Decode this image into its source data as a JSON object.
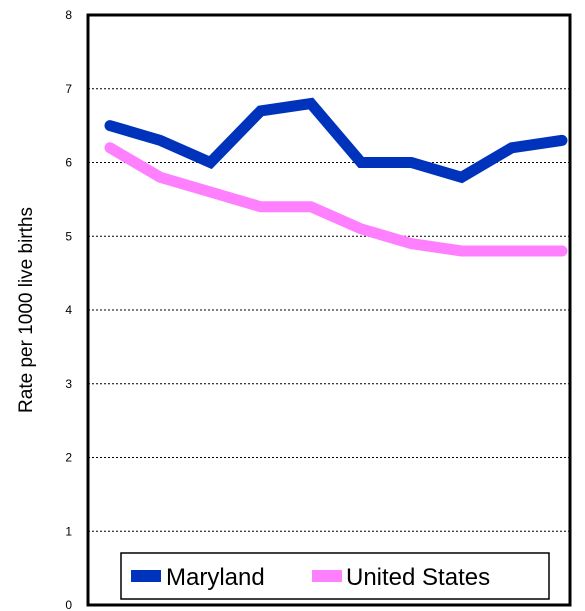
{
  "chart_data": {
    "type": "line",
    "title": "",
    "xlabel": "",
    "ylabel": "Rate per 1000 live births",
    "ylim": [
      0,
      8
    ],
    "yticks": [
      "0",
      "1",
      "2",
      "3",
      "4",
      "5",
      "6",
      "7",
      "8"
    ],
    "grid": true,
    "legend_position": "bottom",
    "series": [
      {
        "name": "Maryland",
        "color": "#0033bb",
        "values": [
          6.5,
          6.3,
          6.0,
          6.7,
          6.8,
          6.0,
          6.0,
          5.8,
          6.2,
          6.3
        ]
      },
      {
        "name": "United States",
        "color": "#ff80ff",
        "values": [
          6.2,
          5.8,
          5.6,
          5.4,
          5.4,
          5.1,
          4.9,
          4.8,
          4.8,
          4.8
        ]
      }
    ]
  }
}
